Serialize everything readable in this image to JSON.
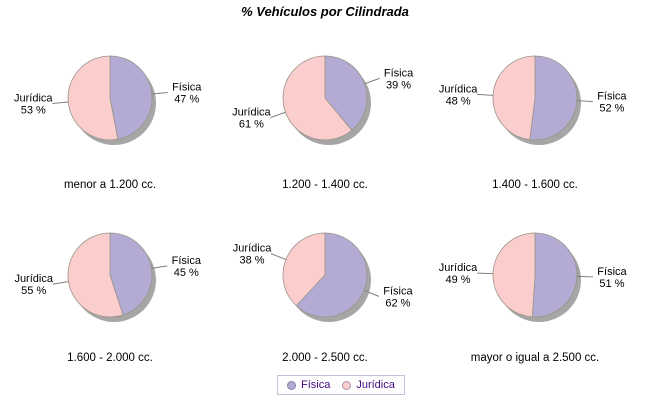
{
  "title": "% Vehículos por Cilindrada",
  "legend": {
    "items": [
      {
        "label": "Física",
        "color": "#b3abd4"
      },
      {
        "label": "Jurídica",
        "color": "#fccdcd"
      }
    ],
    "text_color": "#42077d",
    "border_color": "#c8bedc"
  },
  "chart_data": {
    "type": "pie",
    "title": "% Vehículos por Cilindrada",
    "series": [
      "Física",
      "Jurídica"
    ],
    "colors": {
      "Física": "#b3abd4",
      "Jurídica": "#fccdcd"
    },
    "shadow_color": "#979797",
    "outline_color": "#999488",
    "callout_color": "#808080",
    "legend_position": "bottom",
    "value_suffix": " %",
    "pies": [
      {
        "category": "menor a 1.200 cc.",
        "values": {
          "Física": 47,
          "Jurídica": 53
        }
      },
      {
        "category": "1.200 - 1.400 cc.",
        "values": {
          "Física": 39,
          "Jurídica": 61
        }
      },
      {
        "category": "1.400 - 1.600 cc.",
        "values": {
          "Física": 52,
          "Jurídica": 48
        }
      },
      {
        "category": "1.600 - 2.000 cc.",
        "values": {
          "Física": 45,
          "Jurídica": 55
        }
      },
      {
        "category": "2.000 - 2.500 cc.",
        "values": {
          "Física": 62,
          "Jurídica": 38
        }
      },
      {
        "category": "mayor o igual a 2.500 cc.",
        "values": {
          "Física": 51,
          "Jurídica": 49
        }
      }
    ]
  }
}
